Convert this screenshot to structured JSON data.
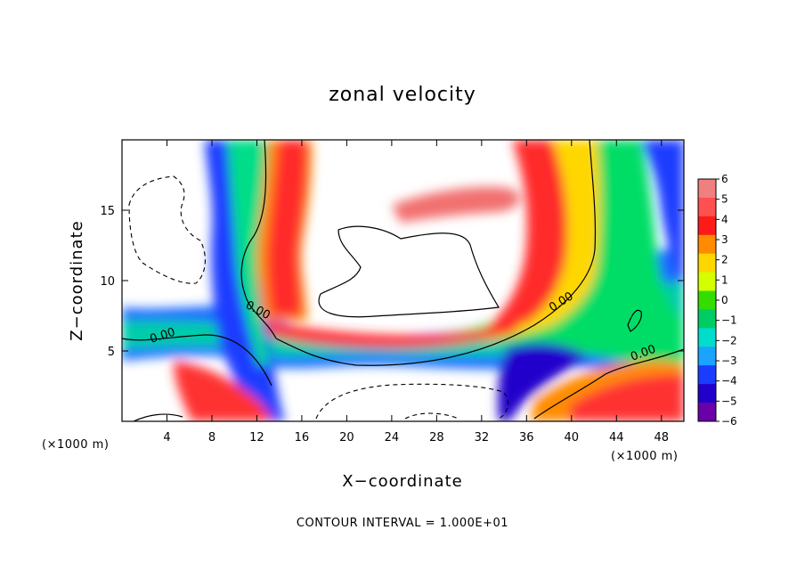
{
  "chart_data": {
    "type": "heatmap",
    "title": "zonal velocity",
    "xlabel": "X−coordinate",
    "ylabel": "Z−coordinate",
    "x_unit": "(×1000 m)",
    "z_unit": "(×1000 m)",
    "xlim": [
      0,
      50
    ],
    "ylim": [
      0,
      20
    ],
    "x_ticks": [
      4,
      8,
      12,
      16,
      20,
      24,
      28,
      32,
      36,
      40,
      44,
      48
    ],
    "y_ticks": [
      5,
      10,
      15
    ],
    "colorbar": {
      "levels": [
        6,
        5,
        4,
        3,
        2,
        1,
        0,
        -1,
        -2,
        -3,
        -4,
        -5,
        -6
      ],
      "tick_labels": [
        "6",
        "5",
        "4",
        "3",
        "2",
        "1",
        "0",
        "−1",
        "−2",
        "−3",
        "−4",
        "−5",
        "−6"
      ],
      "colors": [
        "#f08080",
        "#ff5050",
        "#ff1a1a",
        "#ff8c00",
        "#ffd700",
        "#d4ff00",
        "#33dd00",
        "#00cc66",
        "#00ddcc",
        "#1aa3ff",
        "#1a3cff",
        "#2200cc",
        "#6a00a8"
      ]
    },
    "contour_label": "0.00",
    "note": "CONTOUR INTERVAL = 1.000E+01"
  }
}
